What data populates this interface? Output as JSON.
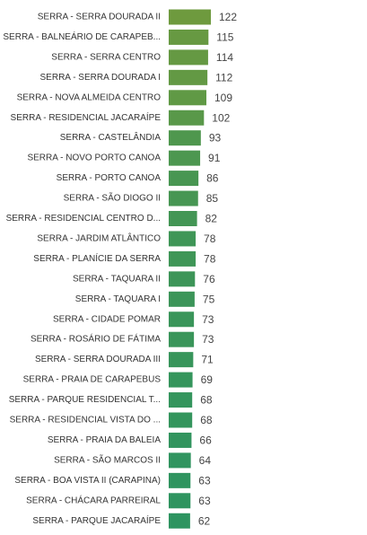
{
  "chart_data": {
    "type": "bar",
    "orientation": "horizontal",
    "categories": [
      "SERRA - SERRA DOURADA II",
      "SERRA - BALNEÁRIO DE CARAPEB...",
      "SERRA - SERRA CENTRO",
      "SERRA - SERRA DOURADA I",
      "SERRA - NOVA ALMEIDA CENTRO",
      "SERRA - RESIDENCIAL JACARAÍPE",
      "SERRA - CASTELÂNDIA",
      "SERRA - NOVO PORTO CANOA",
      "SERRA - PORTO CANOA",
      "SERRA - SÃO DIOGO II",
      "SERRA - RESIDENCIAL CENTRO D...",
      "SERRA - JARDIM ATLÂNTICO",
      "SERRA - PLANÍCIE DA SERRA",
      "SERRA - TAQUARA II",
      "SERRA - TAQUARA I",
      "SERRA - CIDADE POMAR",
      "SERRA - ROSÁRIO DE FÁTIMA",
      "SERRA - SERRA DOURADA III",
      "SERRA - PRAIA DE CARAPEBUS",
      "SERRA - PARQUE RESIDENCIAL T...",
      "SERRA - RESIDENCIAL VISTA DO ...",
      "SERRA - PRAIA DA BALEIA",
      "SERRA - SÃO MARCOS II",
      "SERRA - BOA VISTA II (CARAPINA)",
      "SERRA - CHÁCARA PARREIRAL",
      "SERRA - PARQUE JACARAÍPE"
    ],
    "values": [
      122,
      115,
      114,
      112,
      109,
      102,
      93,
      91,
      86,
      85,
      82,
      78,
      78,
      76,
      75,
      73,
      73,
      71,
      69,
      68,
      68,
      66,
      64,
      63,
      63,
      62
    ],
    "colors": {
      "high": "#6e9a3e",
      "low": "#2e9460"
    },
    "grid": false,
    "legend": "none"
  }
}
